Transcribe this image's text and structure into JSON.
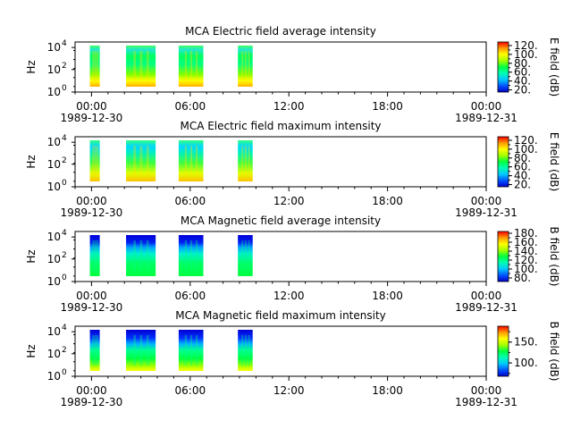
{
  "chart_data": [
    {
      "type": "heatmap",
      "title": "MCA  Electric field average intensity",
      "ylabel": "Hz",
      "y_ticks": [
        {
          "base": "10",
          "exp": "0"
        },
        {
          "base": "10",
          "exp": "2"
        },
        {
          "base": "10",
          "exp": "4"
        }
      ],
      "x_ticks": [
        "00:00",
        "06:00",
        "12:00",
        "18:00",
        "00:00"
      ],
      "x_dates": [
        "1989-12-30",
        "1989-12-31"
      ],
      "x_range_hours": [
        -1,
        24
      ],
      "colorbar_label": "E field (dB)",
      "colorbar_range": [
        15,
        128
      ],
      "colorbar_ticks": [
        "20.",
        "40.",
        "60.",
        "80.",
        "100.",
        "120."
      ],
      "colorbar_tick_values": [
        20,
        40,
        60,
        80,
        100,
        120
      ],
      "data_blocks_hours": [
        [
          -0.1,
          0.5
        ],
        [
          2.1,
          3.9
        ],
        [
          5.3,
          6.8
        ],
        [
          8.9,
          9.8
        ]
      ]
    },
    {
      "type": "heatmap",
      "title": "MCA  Electric field maximum intensity",
      "ylabel": "Hz",
      "y_ticks": [
        {
          "base": "10",
          "exp": "0"
        },
        {
          "base": "10",
          "exp": "2"
        },
        {
          "base": "10",
          "exp": "4"
        }
      ],
      "x_ticks": [
        "00:00",
        "06:00",
        "12:00",
        "18:00",
        "00:00"
      ],
      "x_dates": [
        "1989-12-30",
        "1989-12-31"
      ],
      "x_range_hours": [
        -1,
        24
      ],
      "colorbar_label": "E field (dB)",
      "colorbar_range": [
        15,
        128
      ],
      "colorbar_ticks": [
        "20.",
        "40.",
        "60.",
        "80.",
        "100.",
        "120."
      ],
      "colorbar_tick_values": [
        20,
        40,
        60,
        80,
        100,
        120
      ],
      "data_blocks_hours": [
        [
          -0.1,
          0.5
        ],
        [
          2.1,
          3.9
        ],
        [
          5.3,
          6.8
        ],
        [
          8.9,
          9.8
        ]
      ]
    },
    {
      "type": "heatmap",
      "title": "MCA  Magnetic field average intensity",
      "ylabel": "Hz",
      "y_ticks": [
        {
          "base": "10",
          "exp": "0"
        },
        {
          "base": "10",
          "exp": "2"
        },
        {
          "base": "10",
          "exp": "4"
        }
      ],
      "x_ticks": [
        "00:00",
        "06:00",
        "12:00",
        "18:00",
        "00:00"
      ],
      "x_dates": [
        "1989-12-30",
        "1989-12-31"
      ],
      "x_range_hours": [
        -1,
        24
      ],
      "colorbar_label": "B field (dB)",
      "colorbar_range": [
        72,
        184
      ],
      "colorbar_ticks": [
        "80.",
        "100.",
        "120.",
        "140.",
        "160.",
        "180."
      ],
      "colorbar_tick_values": [
        80,
        100,
        120,
        140,
        160,
        180
      ],
      "data_blocks_hours": [
        [
          -0.1,
          0.5
        ],
        [
          2.1,
          3.9
        ],
        [
          5.3,
          6.8
        ],
        [
          8.9,
          9.8
        ]
      ]
    },
    {
      "type": "heatmap",
      "title": "MCA  Magnetic field maximum intensity",
      "ylabel": "Hz",
      "y_ticks": [
        {
          "base": "10",
          "exp": "0"
        },
        {
          "base": "10",
          "exp": "2"
        },
        {
          "base": "10",
          "exp": "4"
        }
      ],
      "x_ticks": [
        "00:00",
        "06:00",
        "12:00",
        "18:00",
        "00:00"
      ],
      "x_dates": [
        "1989-12-30",
        "1989-12-31"
      ],
      "x_range_hours": [
        -1,
        24
      ],
      "colorbar_label": "B field (dB)",
      "colorbar_range": [
        68,
        188
      ],
      "colorbar_ticks": [
        "100.",
        "150."
      ],
      "colorbar_tick_values": [
        100,
        150
      ],
      "data_blocks_hours": [
        [
          -0.1,
          0.5
        ],
        [
          2.1,
          3.9
        ],
        [
          5.3,
          6.8
        ],
        [
          8.9,
          9.8
        ]
      ]
    }
  ]
}
